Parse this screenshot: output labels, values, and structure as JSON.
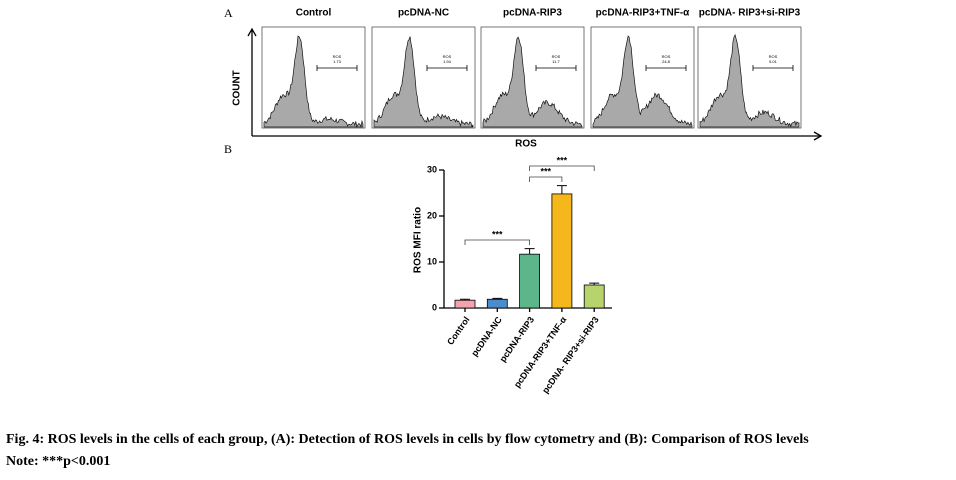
{
  "panel_a": {
    "label": "A",
    "y_label": "COUNT",
    "x_label": "ROS",
    "panels": [
      {
        "title": "Control",
        "gate_label": "ROS",
        "gate_value": "1.73"
      },
      {
        "title": "pcDNA-NC",
        "gate_label": "ROS",
        "gate_value": "1.94"
      },
      {
        "title": "pcDNA-RIP3",
        "gate_label": "ROS",
        "gate_value": "11.7"
      },
      {
        "title": "pcDNA-RIP3+TNF-α",
        "gate_label": "ROS",
        "gate_value": "24.8"
      },
      {
        "title": "pcDNA- RIP3+si-RIP3",
        "gate_label": "ROS",
        "gate_value": "5.01"
      }
    ]
  },
  "chart_data": {
    "type": "bar",
    "panel_label": "B",
    "y_label": "ROS MFI ratio",
    "categories": [
      "Control",
      "pcDNA-NC",
      "pcDNA-RIP3",
      "pcDNA-RIP3+TNF-α",
      "pcDNA- RIP3+si-RIP3"
    ],
    "values": [
      1.7,
      1.9,
      11.7,
      24.8,
      5.0
    ],
    "errors": [
      0.2,
      0.2,
      1.2,
      1.8,
      0.4
    ],
    "colors": [
      "#f2a3ad",
      "#4b8dcc",
      "#5cb68a",
      "#f5b81c",
      "#b6d46b"
    ],
    "ylim": [
      0,
      30
    ],
    "yticks": [
      0,
      10,
      20,
      30
    ],
    "annotations": [
      {
        "text": "***",
        "from": 0,
        "to": 2
      },
      {
        "text": "***",
        "from": 2,
        "to": 3
      },
      {
        "text": "***",
        "from": 2,
        "to": 4
      }
    ]
  },
  "caption": {
    "lines": [
      "Fig. 4: ROS levels in the cells of each group, (A): Detection of ROS levels in cells by flow cytometry and (B): Comparison of ROS levels",
      "Note: ***p<0.001"
    ]
  }
}
